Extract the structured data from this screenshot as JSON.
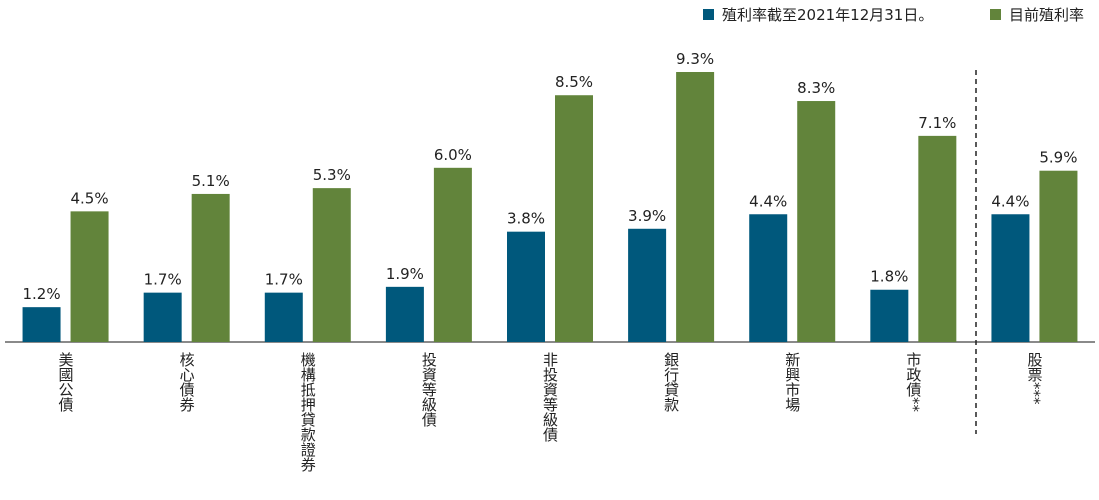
{
  "chart_data": {
    "type": "bar",
    "categories": [
      "美國公債",
      "核心債券",
      "機構抵押貸款證券",
      "投資等級債",
      "非投資等級債",
      "銀行貸款",
      "新興市場",
      "市政債**",
      "股票***"
    ],
    "series": [
      {
        "name": "殖利率截至2021年12月31日。",
        "color": "#00587c",
        "values": [
          1.2,
          1.7,
          1.7,
          1.9,
          3.8,
          3.9,
          4.4,
          1.8,
          4.4
        ],
        "value_labels": [
          "1.2%",
          "1.7%",
          "1.7%",
          "1.9%",
          "3.8%",
          "3.9%",
          "4.4%",
          "1.8%",
          "4.4%"
        ]
      },
      {
        "name": "目前殖利率",
        "color": "#62843b",
        "values": [
          4.5,
          5.1,
          5.3,
          6.0,
          8.5,
          9.3,
          8.3,
          7.1,
          5.9
        ],
        "value_labels": [
          "4.5%",
          "5.1%",
          "5.3%",
          "6.0%",
          "8.5%",
          "9.3%",
          "8.3%",
          "7.1%",
          "5.9%"
        ]
      }
    ]
  }
}
